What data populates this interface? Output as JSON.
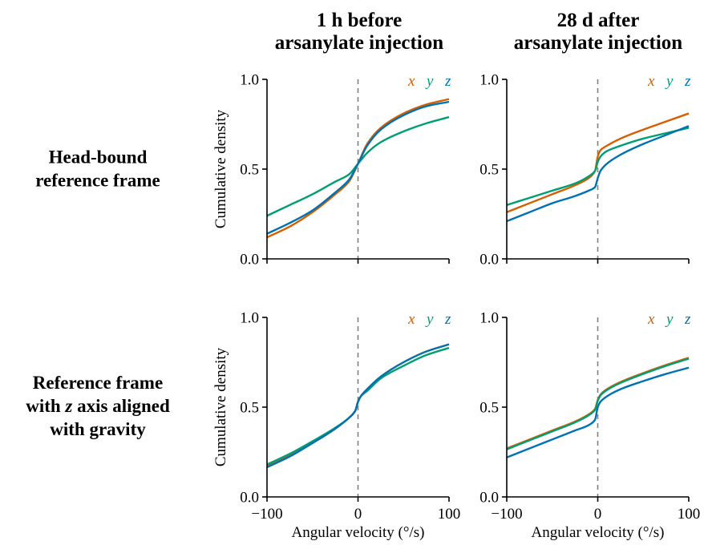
{
  "column_titles": [
    [
      "1 h before",
      "arsanylate injection"
    ],
    [
      "28 d after",
      "arsanylate injection"
    ]
  ],
  "row_titles": [
    [
      [
        {
          "text": "Head-bound",
          "italic": false
        }
      ],
      [
        {
          "text": "reference frame",
          "italic": false
        }
      ]
    ],
    [
      [
        {
          "text": "Reference frame",
          "italic": false
        }
      ],
      [
        {
          "text": "with ",
          "italic": false
        },
        {
          "text": "z",
          "italic": true
        },
        {
          "text": " axis aligned",
          "italic": false
        }
      ],
      [
        {
          "text": "with gravity",
          "italic": false
        }
      ]
    ]
  ],
  "colors": {
    "x": "#d55e00",
    "y": "#009e73",
    "z": "#0072b2",
    "zero_line": "#808080"
  },
  "legend": [
    "x",
    "y",
    "z"
  ],
  "chart_data": [
    {
      "type": "line",
      "panel": "head-bound, 1 h before",
      "xlabel": "",
      "ylabel": "Cumulative density",
      "xlim": [
        -100,
        100
      ],
      "ylim": [
        0,
        1
      ],
      "xticks": [
        "−100",
        "0",
        "100"
      ],
      "yticks": [
        "0.0",
        "0.5",
        "1.0"
      ],
      "x": [
        -100,
        -75,
        -50,
        -25,
        -10,
        0,
        10,
        25,
        50,
        75,
        100
      ],
      "series": [
        {
          "name": "x",
          "values": [
            0.12,
            0.18,
            0.26,
            0.36,
            0.43,
            0.53,
            0.64,
            0.73,
            0.81,
            0.86,
            0.89
          ]
        },
        {
          "name": "y",
          "values": [
            0.24,
            0.3,
            0.36,
            0.43,
            0.47,
            0.53,
            0.59,
            0.65,
            0.71,
            0.755,
            0.79
          ]
        },
        {
          "name": "z",
          "values": [
            0.14,
            0.2,
            0.27,
            0.37,
            0.44,
            0.53,
            0.63,
            0.72,
            0.8,
            0.85,
            0.875
          ]
        }
      ]
    },
    {
      "type": "line",
      "panel": "head-bound, 28 d after",
      "xlabel": "",
      "ylabel": "",
      "xlim": [
        -100,
        100
      ],
      "ylim": [
        0,
        1
      ],
      "xticks": [
        "−100",
        "0",
        "100"
      ],
      "yticks": [
        "0.0",
        "0.5",
        "1.0"
      ],
      "x": [
        -100,
        -75,
        -50,
        -25,
        -10,
        -3,
        0,
        3,
        10,
        25,
        50,
        75,
        100
      ],
      "series": [
        {
          "name": "x",
          "values": [
            0.26,
            0.31,
            0.36,
            0.41,
            0.45,
            0.49,
            0.57,
            0.605,
            0.63,
            0.67,
            0.72,
            0.765,
            0.81
          ]
        },
        {
          "name": "y",
          "values": [
            0.3,
            0.34,
            0.38,
            0.42,
            0.46,
            0.49,
            0.54,
            0.57,
            0.6,
            0.63,
            0.67,
            0.7,
            0.73
          ]
        },
        {
          "name": "z",
          "values": [
            0.21,
            0.26,
            0.31,
            0.35,
            0.38,
            0.4,
            0.45,
            0.49,
            0.53,
            0.58,
            0.64,
            0.69,
            0.74
          ]
        }
      ]
    },
    {
      "type": "line",
      "panel": "gravity-aligned, 1 h before",
      "xlabel": "Angular velocity (°/s)",
      "ylabel": "Cumulative density",
      "xlim": [
        -100,
        100
      ],
      "ylim": [
        0,
        1
      ],
      "xticks": [
        "−100",
        "0",
        "100"
      ],
      "yticks": [
        "0.0",
        "0.5",
        "1.0"
      ],
      "x": [
        -100,
        -75,
        -50,
        -25,
        -10,
        -3,
        0,
        3,
        10,
        25,
        50,
        75,
        100
      ],
      "series": [
        {
          "name": "x",
          "values": [
            0.17,
            0.23,
            0.3,
            0.38,
            0.44,
            0.48,
            0.53,
            0.56,
            0.6,
            0.67,
            0.75,
            0.81,
            0.85
          ]
        },
        {
          "name": "y",
          "values": [
            0.18,
            0.24,
            0.31,
            0.385,
            0.44,
            0.48,
            0.53,
            0.56,
            0.59,
            0.66,
            0.73,
            0.79,
            0.83
          ]
        },
        {
          "name": "z",
          "values": [
            0.165,
            0.225,
            0.3,
            0.38,
            0.44,
            0.48,
            0.53,
            0.56,
            0.6,
            0.67,
            0.75,
            0.81,
            0.85
          ]
        }
      ]
    },
    {
      "type": "line",
      "panel": "gravity-aligned, 28 d after",
      "xlabel": "Angular velocity (°/s)",
      "ylabel": "",
      "xlim": [
        -100,
        100
      ],
      "ylim": [
        0,
        1
      ],
      "xticks": [
        "−100",
        "0",
        "100"
      ],
      "yticks": [
        "0.0",
        "0.5",
        "1.0"
      ],
      "x": [
        -100,
        -75,
        -50,
        -25,
        -10,
        -3,
        0,
        3,
        10,
        25,
        50,
        75,
        100
      ],
      "series": [
        {
          "name": "x",
          "values": [
            0.27,
            0.32,
            0.37,
            0.42,
            0.46,
            0.49,
            0.54,
            0.57,
            0.6,
            0.64,
            0.69,
            0.735,
            0.775
          ]
        },
        {
          "name": "y",
          "values": [
            0.265,
            0.315,
            0.365,
            0.415,
            0.455,
            0.485,
            0.535,
            0.565,
            0.595,
            0.635,
            0.685,
            0.73,
            0.77
          ]
        },
        {
          "name": "z",
          "values": [
            0.22,
            0.27,
            0.32,
            0.37,
            0.4,
            0.43,
            0.5,
            0.53,
            0.56,
            0.6,
            0.645,
            0.685,
            0.72
          ]
        }
      ]
    }
  ]
}
